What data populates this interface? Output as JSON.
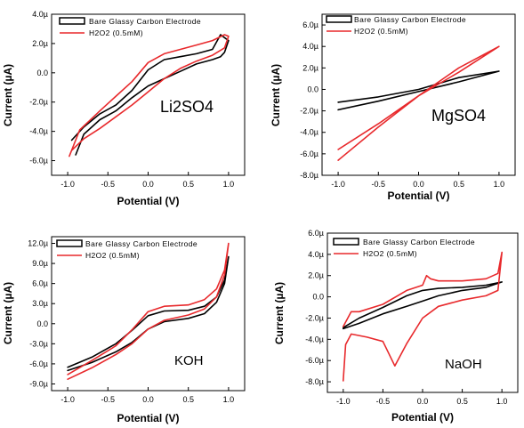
{
  "chart_data": [
    {
      "type": "line",
      "annotation": "Li2SO4",
      "xlabel": "Potential (V)",
      "ylabel": "Current (µA)",
      "xlim": [
        -1.2,
        1.2
      ],
      "ylim": [
        -7.0,
        4.0
      ],
      "xticks": [
        "-1.0",
        "-0.5",
        "0.0",
        "0.5",
        "1.0"
      ],
      "yticks": [
        {
          "v": 4.0,
          "label": "4.0µ"
        },
        {
          "v": 2.0,
          "label": "2.0µ"
        },
        {
          "v": 0.0,
          "label": "0.0"
        },
        {
          "v": -2.0,
          "label": "-2.0µ"
        },
        {
          "v": -4.0,
          "label": "-4.0µ"
        },
        {
          "v": -6.0,
          "label": "-6.0µ"
        }
      ],
      "series": [
        {
          "name": "Bare Glassy Carbon Electrode",
          "color": "#000000",
          "x": [
            -0.95,
            -0.8,
            -0.6,
            -0.4,
            -0.2,
            0.0,
            0.2,
            0.4,
            0.6,
            0.8,
            0.9,
            0.95,
            1.0,
            0.95,
            0.9,
            0.8,
            0.6,
            0.4,
            0.2,
            0.0,
            -0.2,
            -0.4,
            -0.6,
            -0.8,
            -0.9
          ],
          "y": [
            -4.6,
            -3.7,
            -2.8,
            -2.2,
            -1.2,
            0.2,
            0.9,
            1.1,
            1.3,
            1.6,
            2.6,
            2.4,
            2.2,
            1.4,
            1.1,
            0.9,
            0.6,
            0.1,
            -0.4,
            -0.9,
            -1.7,
            -2.6,
            -3.2,
            -4.2,
            -5.6
          ]
        },
        {
          "name": "H2O2 (0.5mM)",
          "color": "#e8292c",
          "x": [
            -0.98,
            -0.85,
            -0.6,
            -0.4,
            -0.2,
            0.0,
            0.2,
            0.4,
            0.6,
            0.8,
            0.95,
            1.0,
            0.95,
            0.8,
            0.6,
            0.4,
            0.2,
            0.0,
            -0.2,
            -0.4,
            -0.6,
            -0.8,
            -0.95
          ],
          "y": [
            -5.7,
            -3.9,
            -2.6,
            -1.6,
            -0.6,
            0.7,
            1.3,
            1.6,
            1.9,
            2.2,
            2.6,
            2.5,
            1.7,
            1.2,
            0.8,
            0.3,
            -0.4,
            -1.3,
            -2.2,
            -3.0,
            -3.8,
            -4.5,
            -5.3
          ]
        }
      ]
    },
    {
      "type": "line",
      "annotation": "MgSO4",
      "xlabel": "Potential (V)",
      "ylabel": "Current (µA)",
      "xlim": [
        -1.2,
        1.2
      ],
      "ylim": [
        -8.0,
        7.0
      ],
      "xticks": [
        "-1.0",
        "-0.5",
        "0.0",
        "0.5",
        "1.0"
      ],
      "yticks": [
        {
          "v": 6.0,
          "label": "6.0µ"
        },
        {
          "v": 4.0,
          "label": "4.0µ"
        },
        {
          "v": 2.0,
          "label": "2.0µ"
        },
        {
          "v": 0.0,
          "label": "0.0"
        },
        {
          "v": -2.0,
          "label": "-2.0µ"
        },
        {
          "v": -4.0,
          "label": "-4.0µ"
        },
        {
          "v": -6.0,
          "label": "-6.0µ"
        },
        {
          "v": -8.0,
          "label": "-8.0µ"
        }
      ],
      "series": [
        {
          "name": "Bare Glassy Carbon Electrode",
          "color": "#000000",
          "x": [
            -1.0,
            -0.5,
            0.0,
            0.5,
            1.0,
            0.5,
            0.0,
            -0.5,
            -1.0
          ],
          "y": [
            -1.9,
            -1.1,
            -0.2,
            0.7,
            1.7,
            1.1,
            0.0,
            -0.7,
            -1.2
          ]
        },
        {
          "name": "H2O2 (0.5mM)",
          "color": "#e8292c",
          "x": [
            -1.0,
            -0.5,
            0.0,
            0.5,
            1.0,
            0.5,
            0.0,
            -0.5,
            -1.0
          ],
          "y": [
            -6.6,
            -3.5,
            -0.6,
            2.0,
            4.0,
            1.6,
            -0.6,
            -3.2,
            -5.6
          ]
        }
      ]
    },
    {
      "type": "line",
      "annotation": "KOH",
      "xlabel": "Potential (V)",
      "ylabel": "Current (µA)",
      "xlim": [
        -1.2,
        1.2
      ],
      "ylim": [
        -10.0,
        13.0
      ],
      "xticks": [
        "-1.0",
        "-0.5",
        "0.0",
        "0.5",
        "1.0"
      ],
      "yticks": [
        {
          "v": 12.0,
          "label": "12.0µ"
        },
        {
          "v": 9.0,
          "label": "9.0µ"
        },
        {
          "v": 6.0,
          "label": "6.0µ"
        },
        {
          "v": 3.0,
          "label": "3.0µ"
        },
        {
          "v": 0.0,
          "label": "0.0"
        },
        {
          "v": -3.0,
          "label": "-3.0µ"
        },
        {
          "v": -6.0,
          "label": "-6.0µ"
        },
        {
          "v": -9.0,
          "label": "-9.0µ"
        }
      ],
      "series": [
        {
          "name": "Bare Glassy Carbon Electrode",
          "color": "#000000",
          "x": [
            -1.0,
            -0.7,
            -0.4,
            -0.2,
            0.0,
            0.2,
            0.5,
            0.7,
            0.85,
            0.95,
            1.0,
            0.95,
            0.85,
            0.7,
            0.5,
            0.2,
            0.0,
            -0.2,
            -0.4,
            -0.7,
            -1.0
          ],
          "y": [
            -6.5,
            -5.0,
            -3.0,
            -1.0,
            1.2,
            1.9,
            2.0,
            2.6,
            4.0,
            6.5,
            10.0,
            6.0,
            3.2,
            1.5,
            0.8,
            0.3,
            -0.8,
            -2.8,
            -4.2,
            -5.8,
            -7.0
          ]
        },
        {
          "name": "H2O2 (0.5mM)",
          "color": "#e8292c",
          "x": [
            -1.0,
            -0.7,
            -0.4,
            -0.2,
            0.0,
            0.2,
            0.5,
            0.7,
            0.85,
            0.95,
            1.0,
            0.95,
            0.85,
            0.7,
            0.5,
            0.2,
            0.0,
            -0.2,
            -0.4,
            -0.7,
            -1.0
          ],
          "y": [
            -7.6,
            -5.5,
            -3.3,
            -0.9,
            1.8,
            2.6,
            2.8,
            3.6,
            5.2,
            8.0,
            12.0,
            7.3,
            4.0,
            2.2,
            1.3,
            0.5,
            -0.8,
            -3.0,
            -4.6,
            -6.6,
            -8.3
          ]
        }
      ]
    },
    {
      "type": "line",
      "annotation": "NaOH",
      "xlabel": "Potential (V)",
      "ylabel": "Current (µA)",
      "xlim": [
        -1.2,
        1.2
      ],
      "ylim": [
        -9.0,
        6.0
      ],
      "xticks": [
        "-1.0",
        "-0.5",
        "0.0",
        "0.5",
        "1.0"
      ],
      "yticks": [
        {
          "v": 6.0,
          "label": "6.0µ"
        },
        {
          "v": 4.0,
          "label": "4.0µ"
        },
        {
          "v": 2.0,
          "label": "2.0µ"
        },
        {
          "v": 0.0,
          "label": "0.0"
        },
        {
          "v": -2.0,
          "label": "-2.0µ"
        },
        {
          "v": -4.0,
          "label": "-4.0µ"
        },
        {
          "v": -6.0,
          "label": "-6.0µ"
        },
        {
          "v": -8.0,
          "label": "-8.0µ"
        }
      ],
      "series": [
        {
          "name": "Bare Glassy Carbon Electrode",
          "color": "#000000",
          "x": [
            -1.0,
            -0.8,
            -0.5,
            -0.2,
            0.0,
            0.2,
            0.5,
            0.8,
            1.0,
            0.8,
            0.5,
            0.2,
            0.0,
            -0.2,
            -0.5,
            -0.8,
            -1.0
          ],
          "y": [
            -2.9,
            -2.0,
            -1.0,
            0.1,
            0.6,
            0.8,
            0.9,
            1.1,
            1.4,
            0.9,
            0.6,
            0.1,
            -0.4,
            -0.9,
            -1.6,
            -2.5,
            -3.0
          ]
        },
        {
          "name": "H2O2 (0.5mM)",
          "color": "#e8292c",
          "x": [
            -1.0,
            -0.9,
            -0.8,
            -0.5,
            -0.2,
            0.0,
            0.05,
            0.1,
            0.2,
            0.5,
            0.8,
            0.95,
            1.0,
            0.95,
            0.8,
            0.5,
            0.2,
            0.0,
            -0.2,
            -0.35,
            -0.5,
            -0.7,
            -0.9,
            -0.97,
            -1.0
          ],
          "y": [
            -2.8,
            -1.4,
            -1.4,
            -0.7,
            0.6,
            1.1,
            2.0,
            1.7,
            1.5,
            1.5,
            1.7,
            2.2,
            4.2,
            0.6,
            0.1,
            -0.3,
            -0.9,
            -2.0,
            -4.4,
            -6.5,
            -4.2,
            -3.8,
            -3.5,
            -4.5,
            -7.9
          ]
        }
      ]
    }
  ]
}
